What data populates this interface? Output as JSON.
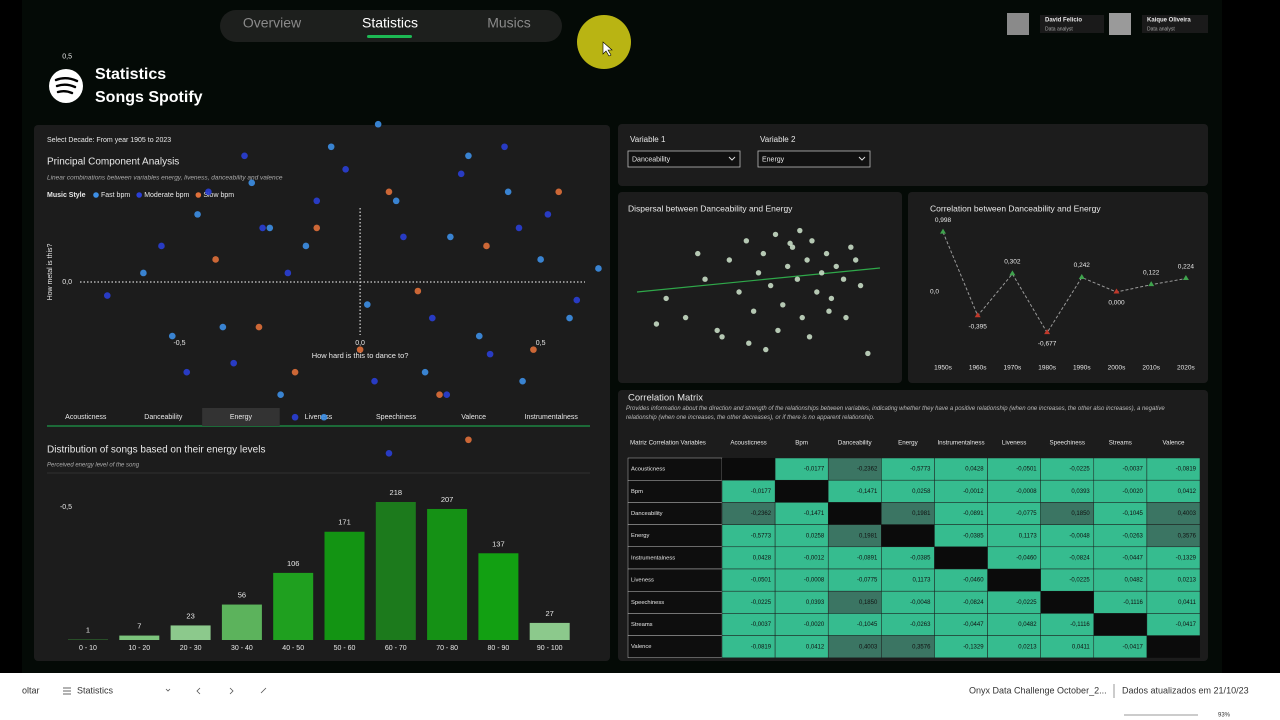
{
  "nav": {
    "tabs": [
      "Overview",
      "Statistics",
      "Musics"
    ],
    "active": 1
  },
  "users": [
    {
      "name": "David Felicio",
      "role": "Data analyst"
    },
    {
      "name": "Kaique Oliveira",
      "role": "Data analyst"
    }
  ],
  "header": {
    "title": "Statistics",
    "subtitle": "Songs Spotify"
  },
  "filter": "Select Decade: From year 1905 to 2023",
  "energy_tabs": {
    "items": [
      "Acousticness",
      "Danceability",
      "Energy",
      "Liveness",
      "Speechiness",
      "Valence",
      "Instrumentalness"
    ],
    "active": 2
  },
  "variables": [
    {
      "label": "Variable 1",
      "value": "Danceability"
    },
    {
      "label": "Variable 2",
      "value": "Energy"
    }
  ],
  "chart_data": [
    {
      "type": "scatter",
      "title": "Principal Component Analysis",
      "subtitle": "Linear combinations between variables energy, liveness, danceability and valence",
      "legend_title": "Music Style",
      "xlabel": "How hard is this to dance to?",
      "ylabel": "How metal is this?",
      "xlim": [
        -0.95,
        0.8
      ],
      "ylim": [
        -0.65,
        0.65
      ],
      "xticks": [
        {
          "value": -0.5,
          "label": "-0,5"
        },
        {
          "value": 0,
          "label": "0,0"
        },
        {
          "value": 0.5,
          "label": "0,5"
        }
      ],
      "yticks": [
        {
          "value": 0.5,
          "label": "0,5"
        },
        {
          "value": 0,
          "label": "0,0"
        },
        {
          "value": -0.5,
          "label": "-0,5"
        }
      ],
      "series": [
        {
          "name": "Fast bpm",
          "color": "#3d8fe6",
          "x": [
            -0.6,
            -0.45,
            -0.38,
            -0.3,
            -0.22,
            -0.15,
            -0.08,
            0.02,
            0.1,
            0.18,
            0.25,
            0.33,
            0.41,
            0.5,
            0.58,
            0.66,
            -0.52,
            -0.1,
            0.05,
            0.3,
            0.45,
            -0.25
          ],
          "values": [
            0.02,
            0.15,
            -0.1,
            0.22,
            -0.25,
            0.08,
            0.3,
            -0.05,
            0.18,
            -0.2,
            0.1,
            -0.12,
            0.2,
            0.05,
            -0.08,
            0.03,
            -0.12,
            -0.3,
            0.35,
            0.28,
            -0.22,
            0.12
          ]
        },
        {
          "name": "Moderate bpm",
          "color": "#2a3fd6",
          "x": [
            -0.7,
            -0.55,
            -0.42,
            -0.35,
            -0.27,
            -0.18,
            -0.12,
            -0.04,
            0.04,
            0.12,
            0.2,
            0.28,
            0.36,
            0.44,
            0.52,
            0.6,
            -0.48,
            -0.2,
            0.08,
            0.24,
            0.4,
            -0.32
          ],
          "values": [
            -0.03,
            0.08,
            0.2,
            -0.18,
            0.12,
            -0.3,
            0.18,
            0.25,
            -0.22,
            0.1,
            -0.08,
            0.24,
            -0.16,
            0.12,
            0.15,
            -0.04,
            -0.2,
            0.02,
            -0.38,
            -0.25,
            0.3,
            0.28
          ]
        },
        {
          "name": "Slow bpm",
          "color": "#e0703a",
          "x": [
            -0.4,
            -0.28,
            -0.12,
            0.0,
            0.08,
            0.16,
            0.22,
            0.35,
            0.48,
            0.55,
            -0.18,
            0.3
          ],
          "values": [
            0.05,
            -0.1,
            0.12,
            -0.15,
            0.2,
            -0.02,
            -0.25,
            0.08,
            -0.15,
            0.2,
            -0.2,
            -0.35
          ]
        }
      ]
    },
    {
      "type": "bar",
      "title": "Distribution of songs based on their energy levels",
      "subtitle": "Perceived energy level of the song",
      "categories": [
        "0 - 10",
        "10 - 20",
        "20 - 30",
        "30 - 40",
        "40 - 50",
        "50 - 60",
        "60 - 70",
        "70 - 80",
        "80 - 90",
        "90 - 100"
      ],
      "values": [
        1,
        7,
        23,
        56,
        106,
        171,
        218,
        207,
        137,
        27
      ],
      "colors": [
        "#2f6b2f",
        "#7cc47c",
        "#8cc98c",
        "#5cb35c",
        "#1fa01f",
        "#139413",
        "#1c7a1c",
        "#159115",
        "#12a012",
        "#8cc98c"
      ]
    },
    {
      "type": "scatter",
      "title": "Dispersal between Danceability and Energy",
      "xlim": [
        0,
        1
      ],
      "ylim": [
        0,
        1
      ],
      "series": [
        {
          "color": "#c6dcc4",
          "x": [
            0.12,
            0.2,
            0.28,
            0.33,
            0.38,
            0.42,
            0.45,
            0.48,
            0.5,
            0.52,
            0.55,
            0.57,
            0.6,
            0.62,
            0.64,
            0.66,
            0.68,
            0.7,
            0.72,
            0.74,
            0.76,
            0.78,
            0.8,
            0.82,
            0.85,
            0.88,
            0.92,
            0.95,
            0.08,
            0.35,
            0.46,
            0.58,
            0.63,
            0.71,
            0.79,
            0.86,
            0.25,
            0.53,
            0.67,
            0.9
          ],
          "values": [
            0.45,
            0.3,
            0.6,
            0.2,
            0.75,
            0.5,
            0.9,
            0.35,
            0.65,
            0.8,
            0.55,
            0.95,
            0.4,
            0.7,
            0.85,
            0.6,
            0.3,
            0.75,
            0.9,
            0.5,
            0.65,
            0.8,
            0.45,
            0.7,
            0.6,
            0.85,
            0.55,
            0.02,
            0.25,
            0.15,
            0.1,
            0.2,
            0.88,
            0.15,
            0.35,
            0.3,
            0.8,
            0.05,
            0.98,
            0.75
          ]
        }
      ]
    },
    {
      "type": "line",
      "title": "Correlation between Danceability and Energy",
      "categories": [
        "1950s",
        "1960s",
        "1970s",
        "1980s",
        "1990s",
        "2000s",
        "2010s",
        "2020s"
      ],
      "values": [
        0.998,
        -0.395,
        0.302,
        -0.677,
        0.242,
        0.0,
        0.122,
        0.224
      ],
      "value_labels": [
        "0,998",
        "-0,395",
        "0,302",
        "-0,677",
        "0,242",
        "0,000",
        "0,122",
        "0,224"
      ],
      "ylim": [
        -0.8,
        1.0
      ],
      "yticks": [
        {
          "value": 0,
          "label": "0,0"
        }
      ],
      "line_color": "#9a9a9a",
      "positive_color": "#3fa34d",
      "negative_color": "#c0392b"
    }
  ],
  "matrix": {
    "title": "Correlation Matrix",
    "description": "Provides information about the direction and strength of the relationships between variables, indicating whether they have a positive relationship (when one increases, the other also increases), a negative relationship (when one increases, the other decreases), or if there is no apparent relationship.",
    "columns": [
      "Matriz Correlation Variables",
      "Acousticness",
      "Bpm",
      "Danceability",
      "Energy",
      "Instrumentalness",
      "Liveness",
      "Speechiness",
      "Streams",
      "Valence"
    ],
    "rows": [
      {
        "label": "Acousticness",
        "cells": [
          null,
          "-0,0177",
          "-0,2362",
          "-0,5773",
          "0,0428",
          "-0,0501",
          "-0,0225",
          "-0,0037",
          "-0,0819"
        ]
      },
      {
        "label": "Bpm",
        "cells": [
          "-0,0177",
          null,
          "-0,1471",
          "0,0258",
          "-0,0012",
          "-0,0008",
          "0,0393",
          "-0,0020",
          "0,0412"
        ]
      },
      {
        "label": "Danceability",
        "cells": [
          "-0,2362",
          "-0,1471",
          null,
          "0,1981",
          "-0,0891",
          "-0,0775",
          "0,1850",
          "-0,1045",
          "0,4003"
        ]
      },
      {
        "label": "Energy",
        "cells": [
          "-0,5773",
          "0,0258",
          "0,1981",
          null,
          "-0,0385",
          "0,1173",
          "-0,0048",
          "-0,0263",
          "0,3576"
        ]
      },
      {
        "label": "Instrumentalness",
        "cells": [
          "0,0428",
          "-0,0012",
          "-0,0891",
          "-0,0385",
          null,
          "-0,0460",
          "-0,0824",
          "-0,0447",
          "-0,1329"
        ]
      },
      {
        "label": "Liveness",
        "cells": [
          "-0,0501",
          "-0,0008",
          "-0,0775",
          "0,1173",
          "-0,0460",
          null,
          "-0,0225",
          "0,0482",
          "0,0213"
        ]
      },
      {
        "label": "Speechiness",
        "cells": [
          "-0,0225",
          "0,0393",
          "0,1850",
          "-0,0048",
          "-0,0824",
          "-0,0225",
          null,
          "-0,1116",
          "0,0411"
        ]
      },
      {
        "label": "Streams",
        "cells": [
          "-0,0037",
          "-0,0020",
          "-0,1045",
          "-0,0263",
          "-0,0447",
          "0,0482",
          "-0,1116",
          null,
          "-0,0417"
        ]
      },
      {
        "label": "Valence",
        "cells": [
          "-0,0819",
          "0,0412",
          "0,4003",
          "0,3576",
          "-0,1329",
          "0,0213",
          "0,0411",
          "-0,0417",
          null
        ]
      }
    ]
  },
  "taskbar": {
    "back": "oltar",
    "page": "Statistics",
    "file": "Onyx Data Challenge October_2...",
    "updated": "Dados atualizados em 21/10/23",
    "zoom": "93%"
  }
}
